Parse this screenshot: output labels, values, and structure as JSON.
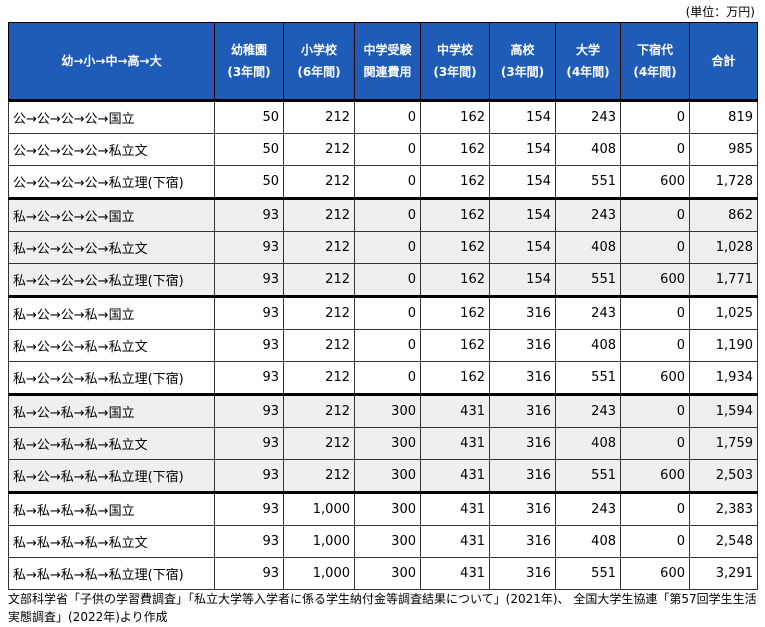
{
  "unit": "(単位：万円)",
  "table": {
    "header": [
      [
        "幼→小→中→高→大"
      ],
      [
        "幼稚園",
        "(3年間)"
      ],
      [
        "小学校",
        "(6年間)"
      ],
      [
        "中学受験",
        "関連費用"
      ],
      [
        "中学校",
        "(3年間)"
      ],
      [
        "高校",
        "(3年間)"
      ],
      [
        "大学",
        "(4年間)"
      ],
      [
        "下宿代",
        "(4年間)"
      ],
      [
        "合計"
      ]
    ],
    "rows": [
      [
        "公→公→公→公→国立",
        "50",
        "212",
        "0",
        "162",
        "154",
        "243",
        "0",
        "819"
      ],
      [
        "公→公→公→公→私立文",
        "50",
        "212",
        "0",
        "162",
        "154",
        "408",
        "0",
        "985"
      ],
      [
        "公→公→公→公→私立理(下宿)",
        "50",
        "212",
        "0",
        "162",
        "154",
        "551",
        "600",
        "1,728"
      ],
      [
        "私→公→公→公→国立",
        "93",
        "212",
        "0",
        "162",
        "154",
        "243",
        "0",
        "862"
      ],
      [
        "私→公→公→公→私立文",
        "93",
        "212",
        "0",
        "162",
        "154",
        "408",
        "0",
        "1,028"
      ],
      [
        "私→公→公→公→私立理(下宿)",
        "93",
        "212",
        "0",
        "162",
        "154",
        "551",
        "600",
        "1,771"
      ],
      [
        "私→公→公→私→国立",
        "93",
        "212",
        "0",
        "162",
        "316",
        "243",
        "0",
        "1,025"
      ],
      [
        "私→公→公→私→私立文",
        "93",
        "212",
        "0",
        "162",
        "316",
        "408",
        "0",
        "1,190"
      ],
      [
        "私→公→公→私→私立理(下宿)",
        "93",
        "212",
        "0",
        "162",
        "316",
        "551",
        "600",
        "1,934"
      ],
      [
        "私→公→私→私→国立",
        "93",
        "212",
        "300",
        "431",
        "316",
        "243",
        "0",
        "1,594"
      ],
      [
        "私→公→私→私→私立文",
        "93",
        "212",
        "300",
        "431",
        "316",
        "408",
        "0",
        "1,759"
      ],
      [
        "私→公→私→私→私立理(下宿)",
        "93",
        "212",
        "300",
        "431",
        "316",
        "551",
        "600",
        "2,503"
      ],
      [
        "私→私→私→私→国立",
        "93",
        "1,000",
        "300",
        "431",
        "316",
        "243",
        "0",
        "2,383"
      ],
      [
        "私→私→私→私→私立文",
        "93",
        "1,000",
        "300",
        "431",
        "316",
        "408",
        "0",
        "2,548"
      ],
      [
        "私→私→私→私→私立理(下宿)",
        "93",
        "1,000",
        "300",
        "431",
        "316",
        "551",
        "600",
        "3,291"
      ]
    ]
  },
  "footnote": "文部科学省「子供の学習費調査」「私立大学等入学者に係る学生納付金等調査結果について」(2021年)、 全国大学生協連「第57回学生生活実態調査」(2022年)より作成"
}
